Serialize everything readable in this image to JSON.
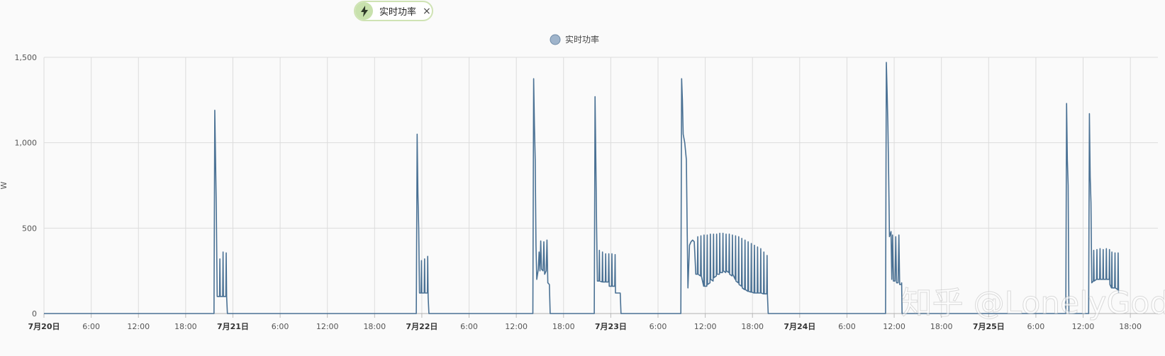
{
  "entity_chip": {
    "label": "实时功率",
    "icon": "lightning-bolt-icon",
    "close_label": "×"
  },
  "watermark": "知乎 @LonelyGod",
  "chart_data": {
    "type": "line",
    "title": "",
    "ylabel": "W",
    "xlabel": "",
    "legend": {
      "position": "top-center",
      "entries": [
        "实时功率"
      ]
    },
    "grid": true,
    "ylim": [
      0,
      1500
    ],
    "yticks": [
      0,
      500,
      1000,
      1500
    ],
    "ytick_labels": [
      "0",
      "500",
      "1,000",
      "1,500"
    ],
    "x_unit": "hours since 7月20日 00:00",
    "xlim": [
      0,
      141.5
    ],
    "xticks": [
      {
        "x": 0,
        "label": "7月20日",
        "bold": true
      },
      {
        "x": 6,
        "label": "6:00",
        "bold": false
      },
      {
        "x": 12,
        "label": "12:00",
        "bold": false
      },
      {
        "x": 18,
        "label": "18:00",
        "bold": false
      },
      {
        "x": 24,
        "label": "7月21日",
        "bold": true
      },
      {
        "x": 30,
        "label": "6:00",
        "bold": false
      },
      {
        "x": 36,
        "label": "12:00",
        "bold": false
      },
      {
        "x": 42,
        "label": "18:00",
        "bold": false
      },
      {
        "x": 48,
        "label": "7月22日",
        "bold": true
      },
      {
        "x": 54,
        "label": "6:00",
        "bold": false
      },
      {
        "x": 60,
        "label": "12:00",
        "bold": false
      },
      {
        "x": 66,
        "label": "18:00",
        "bold": false
      },
      {
        "x": 72,
        "label": "7月23日",
        "bold": true
      },
      {
        "x": 78,
        "label": "6:00",
        "bold": false
      },
      {
        "x": 84,
        "label": "12:00",
        "bold": false
      },
      {
        "x": 90,
        "label": "18:00",
        "bold": false
      },
      {
        "x": 96,
        "label": "7月24日",
        "bold": true
      },
      {
        "x": 102,
        "label": "6:00",
        "bold": false
      },
      {
        "x": 108,
        "label": "12:00",
        "bold": false
      },
      {
        "x": 114,
        "label": "18:00",
        "bold": false
      },
      {
        "x": 120,
        "label": "7月25日",
        "bold": true
      },
      {
        "x": 126,
        "label": "6:00",
        "bold": false
      },
      {
        "x": 132,
        "label": "12:00",
        "bold": false
      },
      {
        "x": 138,
        "label": "18:00",
        "bold": false
      }
    ],
    "series": [
      {
        "name": "实时功率",
        "color": "#4a7194",
        "points": [
          [
            0,
            0
          ],
          [
            21.6,
            0
          ],
          [
            21.7,
            1190
          ],
          [
            21.8,
            900
          ],
          [
            21.9,
            600
          ],
          [
            22.0,
            100
          ],
          [
            22.3,
            100
          ],
          [
            22.35,
            320
          ],
          [
            22.4,
            100
          ],
          [
            22.7,
            100
          ],
          [
            22.75,
            360
          ],
          [
            22.8,
            100
          ],
          [
            23.1,
            100
          ],
          [
            23.15,
            355
          ],
          [
            23.2,
            100
          ],
          [
            23.3,
            0
          ],
          [
            47.3,
            0
          ],
          [
            47.4,
            1050
          ],
          [
            47.5,
            700
          ],
          [
            47.6,
            500
          ],
          [
            47.7,
            120
          ],
          [
            47.9,
            120
          ],
          [
            47.95,
            310
          ],
          [
            48.0,
            120
          ],
          [
            48.3,
            120
          ],
          [
            48.35,
            320
          ],
          [
            48.4,
            120
          ],
          [
            48.7,
            120
          ],
          [
            48.75,
            335
          ],
          [
            48.8,
            100
          ],
          [
            48.9,
            0
          ],
          [
            62.1,
            0
          ],
          [
            62.2,
            1375
          ],
          [
            62.3,
            1100
          ],
          [
            62.4,
            900
          ],
          [
            62.5,
            400
          ],
          [
            62.6,
            200
          ],
          [
            62.8,
            260
          ],
          [
            62.9,
            360
          ],
          [
            63.0,
            250
          ],
          [
            63.1,
            425
          ],
          [
            63.2,
            260
          ],
          [
            63.4,
            250
          ],
          [
            63.5,
            420
          ],
          [
            63.6,
            230
          ],
          [
            63.8,
            250
          ],
          [
            63.9,
            430
          ],
          [
            64.0,
            180
          ],
          [
            64.2,
            170
          ],
          [
            64.3,
            0
          ],
          [
            69.9,
            0
          ],
          [
            70.0,
            1270
          ],
          [
            70.1,
            900
          ],
          [
            70.2,
            500
          ],
          [
            70.3,
            190
          ],
          [
            70.5,
            190
          ],
          [
            70.55,
            370
          ],
          [
            70.6,
            190
          ],
          [
            70.9,
            185
          ],
          [
            70.95,
            360
          ],
          [
            71.0,
            185
          ],
          [
            71.3,
            185
          ],
          [
            71.35,
            350
          ],
          [
            71.4,
            185
          ],
          [
            71.7,
            185
          ],
          [
            71.75,
            350
          ],
          [
            71.8,
            160
          ],
          [
            72.1,
            160
          ],
          [
            72.15,
            350
          ],
          [
            72.2,
            160
          ],
          [
            72.5,
            160
          ],
          [
            72.55,
            345
          ],
          [
            72.6,
            120
          ],
          [
            73.2,
            120
          ],
          [
            73.3,
            0
          ],
          [
            80.9,
            0
          ],
          [
            81.0,
            1375
          ],
          [
            81.1,
            1250
          ],
          [
            81.2,
            1050
          ],
          [
            81.4,
            1000
          ],
          [
            81.6,
            900
          ],
          [
            81.7,
            500
          ],
          [
            81.8,
            150
          ],
          [
            82.0,
            400
          ],
          [
            82.2,
            420
          ],
          [
            82.4,
            430
          ],
          [
            82.6,
            420
          ],
          [
            82.8,
            230
          ],
          [
            83.0,
            230
          ],
          [
            83.05,
            450
          ],
          [
            83.1,
            230
          ],
          [
            83.4,
            220
          ],
          [
            83.45,
            455
          ],
          [
            83.5,
            220
          ],
          [
            83.8,
            160
          ],
          [
            83.85,
            460
          ],
          [
            83.9,
            160
          ],
          [
            84.2,
            160
          ],
          [
            84.25,
            460
          ],
          [
            84.3,
            170
          ],
          [
            84.6,
            180
          ],
          [
            84.65,
            465
          ],
          [
            84.7,
            200
          ],
          [
            85.0,
            190
          ],
          [
            85.05,
            465
          ],
          [
            85.1,
            210
          ],
          [
            85.4,
            220
          ],
          [
            85.45,
            465
          ],
          [
            85.5,
            230
          ],
          [
            85.8,
            230
          ],
          [
            85.85,
            470
          ],
          [
            85.9,
            240
          ],
          [
            86.2,
            240
          ],
          [
            86.25,
            470
          ],
          [
            86.3,
            250
          ],
          [
            86.6,
            240
          ],
          [
            86.65,
            465
          ],
          [
            86.7,
            250
          ],
          [
            87.0,
            240
          ],
          [
            87.05,
            465
          ],
          [
            87.1,
            230
          ],
          [
            87.4,
            220
          ],
          [
            87.45,
            460
          ],
          [
            87.5,
            230
          ],
          [
            87.8,
            200
          ],
          [
            87.85,
            455
          ],
          [
            87.9,
            190
          ],
          [
            88.2,
            180
          ],
          [
            88.25,
            450
          ],
          [
            88.3,
            170
          ],
          [
            88.6,
            160
          ],
          [
            88.65,
            440
          ],
          [
            88.7,
            150
          ],
          [
            89.0,
            140
          ],
          [
            89.05,
            430
          ],
          [
            89.1,
            140
          ],
          [
            89.4,
            130
          ],
          [
            89.45,
            420
          ],
          [
            89.5,
            130
          ],
          [
            89.8,
            125
          ],
          [
            89.85,
            410
          ],
          [
            89.9,
            125
          ],
          [
            90.2,
            120
          ],
          [
            90.25,
            400
          ],
          [
            90.3,
            120
          ],
          [
            90.6,
            120
          ],
          [
            90.65,
            390
          ],
          [
            90.7,
            120
          ],
          [
            91.0,
            120
          ],
          [
            91.05,
            380
          ],
          [
            91.1,
            120
          ],
          [
            91.4,
            115
          ],
          [
            91.45,
            360
          ],
          [
            91.5,
            115
          ],
          [
            91.8,
            115
          ],
          [
            91.85,
            340
          ],
          [
            91.9,
            110
          ],
          [
            92.0,
            0
          ],
          [
            106.9,
            0
          ],
          [
            107.0,
            1470
          ],
          [
            107.1,
            1300
          ],
          [
            107.2,
            1100
          ],
          [
            107.3,
            800
          ],
          [
            107.4,
            450
          ],
          [
            107.6,
            480
          ],
          [
            107.7,
            200
          ],
          [
            107.8,
            460
          ],
          [
            107.9,
            190
          ],
          [
            108.1,
            190
          ],
          [
            108.2,
            450
          ],
          [
            108.3,
            180
          ],
          [
            108.5,
            180
          ],
          [
            108.6,
            460
          ],
          [
            108.7,
            170
          ],
          [
            108.9,
            170
          ],
          [
            108.95,
            180
          ],
          [
            109.0,
            0
          ],
          [
            129.8,
            0
          ],
          [
            129.9,
            1230
          ],
          [
            130.0,
            900
          ],
          [
            130.1,
            750
          ],
          [
            130.2,
            0
          ],
          [
            132.7,
            0
          ],
          [
            132.8,
            1170
          ],
          [
            132.9,
            800
          ],
          [
            133.0,
            650
          ],
          [
            133.1,
            180
          ],
          [
            133.3,
            190
          ],
          [
            133.35,
            370
          ],
          [
            133.4,
            190
          ],
          [
            133.7,
            200
          ],
          [
            133.75,
            375
          ],
          [
            133.8,
            200
          ],
          [
            134.1,
            200
          ],
          [
            134.15,
            380
          ],
          [
            134.2,
            200
          ],
          [
            134.5,
            200
          ],
          [
            134.55,
            375
          ],
          [
            134.6,
            200
          ],
          [
            134.9,
            200
          ],
          [
            134.95,
            380
          ],
          [
            135.0,
            200
          ],
          [
            135.3,
            200
          ],
          [
            135.35,
            375
          ],
          [
            135.4,
            170
          ],
          [
            135.6,
            150
          ],
          [
            135.65,
            360
          ],
          [
            135.7,
            150
          ],
          [
            136.0,
            150
          ],
          [
            136.05,
            355
          ],
          [
            136.1,
            150
          ],
          [
            136.4,
            140
          ],
          [
            136.45,
            355
          ],
          [
            136.5,
            120
          ]
        ]
      }
    ]
  }
}
